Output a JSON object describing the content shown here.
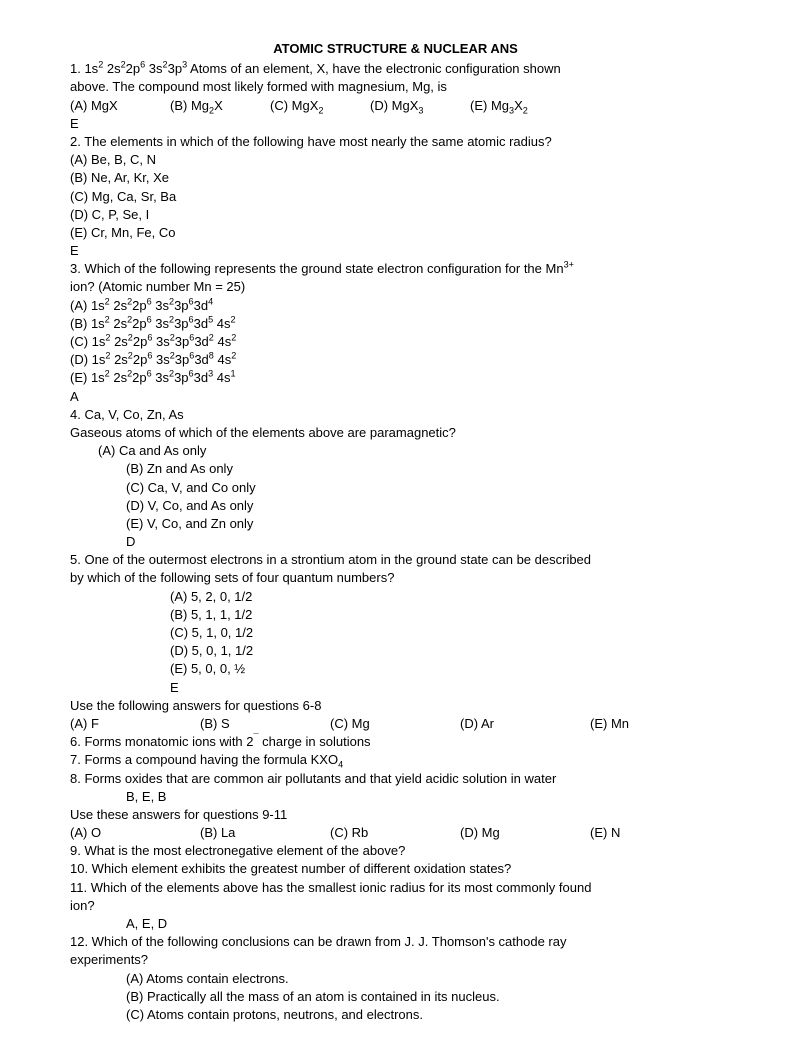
{
  "title": "ATOMIC STRUCTURE & NUCLEAR ANS",
  "q1": {
    "line1_pre": "1. 1s",
    "line1_sup1": "2",
    "line1_mid1": " 2s",
    "line1_sup2": "2",
    "line1_mid2": "2p",
    "line1_sup3": "6",
    "line1_mid3": " 3s",
    "line1_sup4": "2",
    "line1_mid4": "3p",
    "line1_sup5": "3",
    "line1_post": "   Atoms of an element, X, have the electronic configuration shown",
    "line2": "above. The compound most likely formed with magnesium, Mg, is",
    "optA": "(A) MgX",
    "optB_pre": "(B) Mg",
    "optB_sub": "2",
    "optB_post": "X",
    "optC_pre": "(C) MgX",
    "optC_sub": "2",
    "optD_pre": "(D) MgX",
    "optD_sub": "3",
    "optE_pre": "(E) Mg",
    "optE_sub1": "3",
    "optE_mid": "X",
    "optE_sub2": "2",
    "ans": "E"
  },
  "q2": {
    "stem": "2. The elements in which of the following have most nearly the same atomic radius?",
    "a": "(A) Be, B, C, N",
    "b": "(B) Ne, Ar, Kr, Xe",
    "c": "(C) Mg, Ca, Sr, Ba",
    "d": "(D) C, P, Se, I",
    "e": "(E) Cr, Mn, Fe, Co",
    "ans": "E"
  },
  "q3": {
    "stem_pre": "3. Which of the following represents the ground state electron configuration for the Mn",
    "stem_sup": "3+",
    "line2": "ion? (Atomic number Mn = 25)",
    "a_pre": "(A) 1s",
    "a_s1": "2",
    "a_m1": " 2s",
    "a_s2": "2",
    "a_m2": "2p",
    "a_s3": "6",
    "a_m3": " 3s",
    "a_s4": "2",
    "a_m4": "3p",
    "a_s5": "6",
    "a_m5": "3d",
    "a_s6": "4",
    "b_pre": "(B) 1s",
    "b_s1": "2",
    "b_m1": " 2s",
    "b_s2": "2",
    "b_m2": "2p",
    "b_s3": "6",
    "b_m3": " 3s",
    "b_s4": "2",
    "b_m4": "3p",
    "b_s5": "6",
    "b_m5": "3d",
    "b_s6": "5",
    "b_m6": " 4s",
    "b_s7": "2",
    "c_pre": "(C) 1s",
    "c_s1": "2",
    "c_m1": " 2s",
    "c_s2": "2",
    "c_m2": "2p",
    "c_s3": "6",
    "c_m3": " 3s",
    "c_s4": "2",
    "c_m4": "3p",
    "c_s5": "6",
    "c_m5": "3d",
    "c_s6": "2",
    "c_m6": " 4s",
    "c_s7": "2",
    "d_pre": "(D) 1s",
    "d_s1": "2",
    "d_m1": " 2s",
    "d_s2": "2",
    "d_m2": "2p",
    "d_s3": "6",
    "d_m3": " 3s",
    "d_s4": "2",
    "d_m4": "3p",
    "d_s5": "6",
    "d_m5": "3d",
    "d_s6": "8",
    "d_m6": " 4s",
    "d_s7": "2",
    "e_pre": "(E) 1s",
    "e_s1": "2",
    "e_m1": " 2s",
    "e_s2": "2",
    "e_m2": "2p",
    "e_s3": "6",
    "e_m3": " 3s",
    "e_s4": "2",
    "e_m4": "3p",
    "e_s5": "6",
    "e_m5": "3d",
    "e_s6": "3",
    "e_m6": " 4s",
    "e_s7": "1",
    "ans": "A"
  },
  "q4": {
    "stem1": "4. Ca, V, Co, Zn, As",
    "stem2": "Gaseous atoms of which of the elements above are paramagnetic?",
    "a": "(A) Ca and As only",
    "b": "(B) Zn and As only",
    "c": "(C) Ca, V, and Co only",
    "d": "(D) V, Co, and As only",
    "e": "(E) V, Co, and Zn only",
    "ans": "D"
  },
  "q5": {
    "stem1": "5. One of the outermost electrons in a strontium atom in the ground state can be described",
    "stem2": "by which of the following sets of four quantum numbers?",
    "a": "(A) 5, 2, 0, 1/2",
    "b": "(B) 5, 1, 1, 1/2",
    "c": "(C) 5, 1, 0, 1/2",
    "d": "(D) 5, 0, 1, 1/2",
    "e": "(E) 5, 0, 0, ½",
    "ans": "E"
  },
  "q68header": "Use the following answers for questions 6-8",
  "q68opts": {
    "a": "(A) F",
    "b": "(B) S",
    "c": "(C) Mg",
    "d": "(D) Ar",
    "e": "(E) Mn"
  },
  "q6_pre": "6. Forms monatomic ions with 2",
  "q6_sup": "¯",
  "q6_post": " charge in solutions",
  "q7_pre": "7. Forms a compound having the formula KXO",
  "q7_sub": "4",
  "q8": "8. Forms oxides that are common air pollutants and that yield acidic solution in water",
  "q68ans": "B, E, B",
  "q911header": " Use these answers for questions 9-11",
  "q911opts": {
    "a": "(A) O",
    "b": "(B) La",
    "c": "(C) Rb",
    "d": "(D) Mg",
    "e": "(E) N"
  },
  "q9": "9. What is the most electronegative element of the above?",
  "q10": "10. Which element exhibits the greatest number of different oxidation states?",
  "q11_1": "11. Which of the elements above has the smallest ionic radius for its most commonly found",
  "q11_2": "ion?",
  "q911ans": "A, E, D",
  "q12": {
    "stem1": "12. Which of the following conclusions can be drawn from J. J. Thomson's cathode ray",
    "stem2": "experiments?",
    "a": "(A) Atoms contain electrons.",
    "b": "(B) Practically all the mass of an atom is contained in its nucleus.",
    "c": "(C) Atoms contain protons, neutrons, and electrons."
  }
}
